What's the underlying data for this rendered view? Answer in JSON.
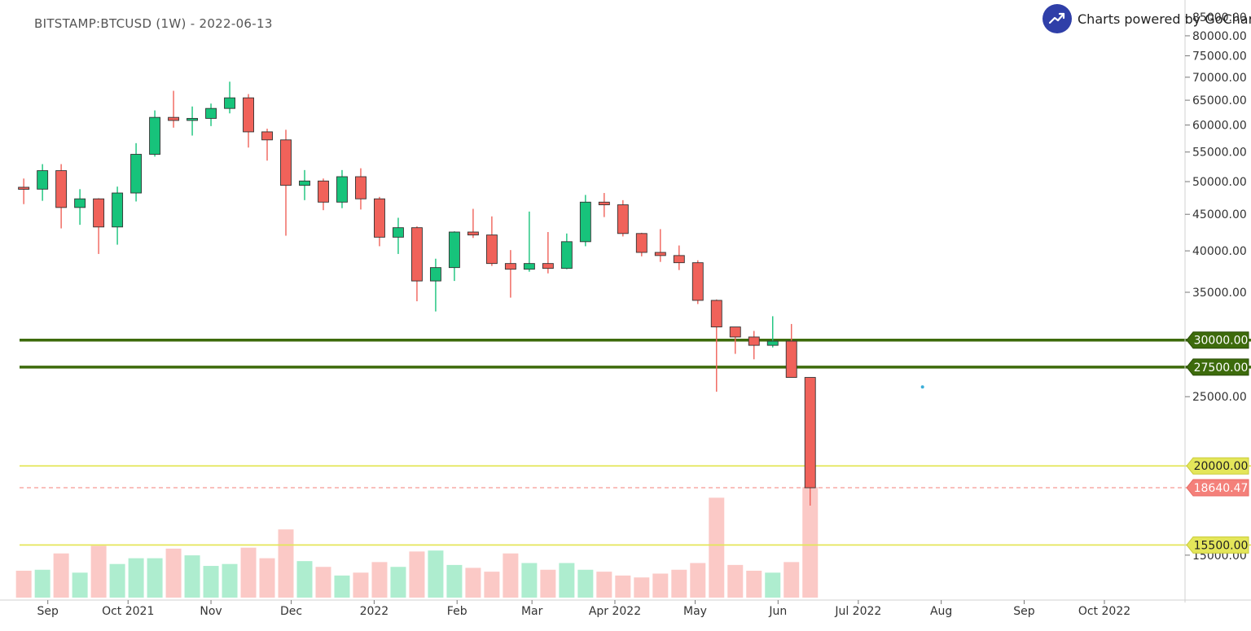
{
  "header": {
    "symbol": "BITSTAMP:BTCUSD (1W) - 2022-06-13",
    "powered_by": "Charts powered by GoCharting",
    "logo_icon": "trend-up-icon",
    "logo_color": "#2f3fa8"
  },
  "colors": {
    "up": "#17c37b",
    "down": "#f0625a",
    "candle_border": "#333333",
    "up_volume": "#aeedcf",
    "down_volume": "#fbc9c6",
    "green_level": "#3d6b0c",
    "yellow_level": "#e4e65a",
    "last_price": "#f4807a",
    "axis_text": "#333333"
  },
  "chart_data": {
    "type": "candlestick",
    "symbol": "BITSTAMP:BTCUSD",
    "interval": "1W",
    "y_scale": "log",
    "ylim": [
      13500,
      87000
    ],
    "y_ticks": [
      {
        "value": 85000,
        "label": "85000.00"
      },
      {
        "value": 80000,
        "label": "80000.00"
      },
      {
        "value": 75000,
        "label": "75000.00"
      },
      {
        "value": 70000,
        "label": "70000.00"
      },
      {
        "value": 65000,
        "label": "65000.00"
      },
      {
        "value": 60000,
        "label": "60000.00"
      },
      {
        "value": 55000,
        "label": "55000.00"
      },
      {
        "value": 50000,
        "label": "50000.00"
      },
      {
        "value": 45000,
        "label": "45000.00"
      },
      {
        "value": 40000,
        "label": "40000.00"
      },
      {
        "value": 35000,
        "label": "35000.00"
      },
      {
        "value": 25000,
        "label": "25000.00"
      },
      {
        "value": 15000,
        "label": "15000.00"
      }
    ],
    "x_ticks": [
      {
        "date": "2021-09-01",
        "label": "Sep"
      },
      {
        "date": "2021-10-01",
        "label": "Oct 2021"
      },
      {
        "date": "2021-11-01",
        "label": "Nov"
      },
      {
        "date": "2021-12-01",
        "label": "Dec"
      },
      {
        "date": "2022-01-01",
        "label": "2022"
      },
      {
        "date": "2022-02-01",
        "label": "Feb"
      },
      {
        "date": "2022-03-01",
        "label": "Mar"
      },
      {
        "date": "2022-04-01",
        "label": "Apr 2022"
      },
      {
        "date": "2022-05-01",
        "label": "May"
      },
      {
        "date": "2022-06-01",
        "label": "Jun"
      },
      {
        "date": "2022-07-01",
        "label": "Jul 2022"
      },
      {
        "date": "2022-08-01",
        "label": "Aug"
      },
      {
        "date": "2022-09-01",
        "label": "Sep"
      },
      {
        "date": "2022-10-01",
        "label": "Oct 2022"
      }
    ],
    "candles": [
      {
        "date": "2021-08-23",
        "open": 49100,
        "high": 50500,
        "low": 46500,
        "close": 48800,
        "volume": 0.28
      },
      {
        "date": "2021-08-30",
        "open": 48800,
        "high": 52900,
        "low": 47000,
        "close": 51800,
        "volume": 0.29
      },
      {
        "date": "2021-09-06",
        "open": 51800,
        "high": 52900,
        "low": 43000,
        "close": 46000,
        "volume": 0.46
      },
      {
        "date": "2021-09-13",
        "open": 46000,
        "high": 48800,
        "low": 43500,
        "close": 47300,
        "volume": 0.26
      },
      {
        "date": "2021-09-20",
        "open": 47300,
        "high": 47400,
        "low": 39600,
        "close": 43200,
        "volume": 0.54
      },
      {
        "date": "2021-09-27",
        "open": 43200,
        "high": 49200,
        "low": 40800,
        "close": 48200,
        "volume": 0.35
      },
      {
        "date": "2021-10-04",
        "open": 48200,
        "high": 56600,
        "low": 46900,
        "close": 54600,
        "volume": 0.41
      },
      {
        "date": "2021-10-11",
        "open": 54600,
        "high": 62900,
        "low": 54200,
        "close": 61500,
        "volume": 0.41
      },
      {
        "date": "2021-10-18",
        "open": 61500,
        "high": 67000,
        "low": 59500,
        "close": 60900,
        "volume": 0.51
      },
      {
        "date": "2021-10-25",
        "open": 60900,
        "high": 63700,
        "low": 58000,
        "close": 61300,
        "volume": 0.44
      },
      {
        "date": "2021-11-01",
        "open": 61300,
        "high": 64300,
        "low": 59800,
        "close": 63300,
        "volume": 0.33
      },
      {
        "date": "2021-11-08",
        "open": 63300,
        "high": 69000,
        "low": 62300,
        "close": 65500,
        "volume": 0.35
      },
      {
        "date": "2021-11-15",
        "open": 65500,
        "high": 66300,
        "low": 55800,
        "close": 58700,
        "volume": 0.52
      },
      {
        "date": "2021-11-22",
        "open": 58700,
        "high": 59300,
        "low": 53500,
        "close": 57200,
        "volume": 0.41
      },
      {
        "date": "2021-11-29",
        "open": 57200,
        "high": 59100,
        "low": 42000,
        "close": 49400,
        "volume": 0.71
      },
      {
        "date": "2021-12-06",
        "open": 49400,
        "high": 51900,
        "low": 47100,
        "close": 50100,
        "volume": 0.38
      },
      {
        "date": "2021-12-13",
        "open": 50100,
        "high": 50500,
        "low": 45600,
        "close": 46800,
        "volume": 0.32
      },
      {
        "date": "2021-12-20",
        "open": 46800,
        "high": 51900,
        "low": 45900,
        "close": 50800,
        "volume": 0.23
      },
      {
        "date": "2021-12-27",
        "open": 50800,
        "high": 52200,
        "low": 45700,
        "close": 47300,
        "volume": 0.26
      },
      {
        "date": "2022-01-03",
        "open": 47300,
        "high": 47600,
        "low": 40600,
        "close": 41800,
        "volume": 0.37
      },
      {
        "date": "2022-01-10",
        "open": 41800,
        "high": 44500,
        "low": 39600,
        "close": 43100,
        "volume": 0.32
      },
      {
        "date": "2022-01-17",
        "open": 43100,
        "high": 43300,
        "low": 34000,
        "close": 36300,
        "volume": 0.48
      },
      {
        "date": "2022-01-24",
        "open": 36300,
        "high": 39000,
        "low": 32900,
        "close": 37900,
        "volume": 0.49
      },
      {
        "date": "2022-01-31",
        "open": 37900,
        "high": 42600,
        "low": 36300,
        "close": 42500,
        "volume": 0.34
      },
      {
        "date": "2022-02-07",
        "open": 42500,
        "high": 45800,
        "low": 41700,
        "close": 42100,
        "volume": 0.31
      },
      {
        "date": "2022-02-14",
        "open": 42100,
        "high": 44700,
        "low": 38100,
        "close": 38400,
        "volume": 0.27
      },
      {
        "date": "2022-02-21",
        "open": 38400,
        "high": 40100,
        "low": 34400,
        "close": 37700,
        "volume": 0.46
      },
      {
        "date": "2022-02-28",
        "open": 37700,
        "high": 45400,
        "low": 37400,
        "close": 38400,
        "volume": 0.36
      },
      {
        "date": "2022-03-07",
        "open": 38400,
        "high": 42500,
        "low": 37200,
        "close": 37800,
        "volume": 0.29
      },
      {
        "date": "2022-03-14",
        "open": 37800,
        "high": 42300,
        "low": 37700,
        "close": 41200,
        "volume": 0.36
      },
      {
        "date": "2022-03-21",
        "open": 41200,
        "high": 47900,
        "low": 40600,
        "close": 46800,
        "volume": 0.29
      },
      {
        "date": "2022-03-28",
        "open": 46800,
        "high": 48200,
        "low": 44600,
        "close": 46400,
        "volume": 0.27
      },
      {
        "date": "2022-04-04",
        "open": 46400,
        "high": 47100,
        "low": 41900,
        "close": 42300,
        "volume": 0.23
      },
      {
        "date": "2022-04-11",
        "open": 42300,
        "high": 42400,
        "low": 39300,
        "close": 39800,
        "volume": 0.21
      },
      {
        "date": "2022-04-18",
        "open": 39800,
        "high": 42900,
        "low": 38600,
        "close": 39400,
        "volume": 0.25
      },
      {
        "date": "2022-04-25",
        "open": 39400,
        "high": 40700,
        "low": 37600,
        "close": 38500,
        "volume": 0.29
      },
      {
        "date": "2022-05-02",
        "open": 38500,
        "high": 38800,
        "low": 33700,
        "close": 34100,
        "volume": 0.36
      },
      {
        "date": "2022-05-09",
        "open": 34100,
        "high": 34200,
        "low": 25400,
        "close": 31300,
        "volume": 1.04
      },
      {
        "date": "2022-05-16",
        "open": 31300,
        "high": 31300,
        "low": 28700,
        "close": 30300,
        "volume": 0.34
      },
      {
        "date": "2022-05-23",
        "open": 30300,
        "high": 30900,
        "low": 28200,
        "close": 29500,
        "volume": 0.28
      },
      {
        "date": "2022-05-30",
        "open": 29500,
        "high": 32400,
        "low": 29300,
        "close": 29900,
        "volume": 0.26
      },
      {
        "date": "2022-06-06",
        "open": 29900,
        "high": 31600,
        "low": 26600,
        "close": 26600,
        "volume": 0.37
      },
      {
        "date": "2022-06-13",
        "open": 26600,
        "high": 26600,
        "low": 17600,
        "close": 18640.47,
        "volume": 1.15
      }
    ],
    "volume_note": "relative volume, 1.0 = tallest bar height reference",
    "horizontal_levels": [
      {
        "value": 30000,
        "label": "30000.00",
        "color": "#3d6b0c",
        "style": "solid-thick"
      },
      {
        "value": 27500,
        "label": "27500.00",
        "color": "#3d6b0c",
        "style": "solid-thick"
      },
      {
        "value": 20000,
        "label": "20000.00",
        "color": "#e4e65a",
        "style": "solid"
      },
      {
        "value": 15500,
        "label": "15500.00",
        "color": "#e4e65a",
        "style": "solid"
      }
    ],
    "last_price": {
      "value": 18640.47,
      "label": "18640.47",
      "color": "#f4807a"
    },
    "marker": {
      "date": "2022-07-25",
      "value": 25800,
      "color": "#3aaed8"
    },
    "grid": false
  }
}
